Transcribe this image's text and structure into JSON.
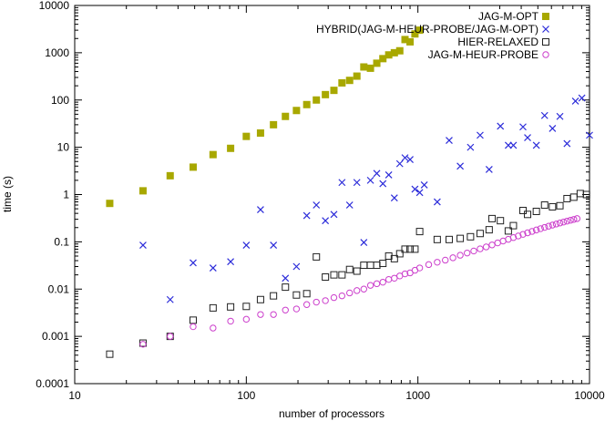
{
  "chart_data": {
    "type": "scatter",
    "xscale": "log",
    "yscale": "log",
    "xlabel": "number of processors",
    "ylabel": "time (s)",
    "xlim": [
      10,
      10000
    ],
    "ylim": [
      0.0001,
      10000
    ],
    "grid": false,
    "legend_position": "top-right",
    "x_tick_labels": [
      "10",
      "100",
      "1000",
      "10000"
    ],
    "y_tick_labels": [
      "0.0001",
      "0.001",
      "0.01",
      "0.1",
      "1",
      "10",
      "100",
      "1000",
      "10000"
    ],
    "series": [
      {
        "name": "JAG-M-OPT",
        "marker": "filled-square",
        "color": "#a8a800",
        "points": [
          [
            16,
            0.65
          ],
          [
            25,
            1.2
          ],
          [
            36,
            2.5
          ],
          [
            49,
            3.8
          ],
          [
            64,
            7
          ],
          [
            81,
            9.5
          ],
          [
            100,
            17
          ],
          [
            121,
            20
          ],
          [
            144,
            30
          ],
          [
            169,
            45
          ],
          [
            196,
            60
          ],
          [
            225,
            80
          ],
          [
            256,
            100
          ],
          [
            289,
            130
          ],
          [
            324,
            160
          ],
          [
            361,
            230
          ],
          [
            400,
            260
          ],
          [
            441,
            320
          ],
          [
            484,
            500
          ],
          [
            529,
            470
          ],
          [
            576,
            600
          ],
          [
            625,
            750
          ],
          [
            676,
            900
          ],
          [
            729,
            1000
          ],
          [
            784,
            1100
          ],
          [
            841,
            1900
          ],
          [
            900,
            1700
          ],
          [
            961,
            2500
          ],
          [
            1024,
            3000
          ]
        ]
      },
      {
        "name": "HYBRID(JAG-M-HEUR-PROBE/JAG-M-OPT)",
        "marker": "cross",
        "color": "#2b2bd9",
        "points": [
          [
            25,
            0.085
          ],
          [
            36,
            0.006
          ],
          [
            49,
            0.036
          ],
          [
            64,
            0.028
          ],
          [
            81,
            0.038
          ],
          [
            100,
            0.085
          ],
          [
            121,
            0.48
          ],
          [
            144,
            0.085
          ],
          [
            169,
            0.017
          ],
          [
            196,
            0.03
          ],
          [
            225,
            0.36
          ],
          [
            256,
            0.6
          ],
          [
            289,
            0.28
          ],
          [
            324,
            0.38
          ],
          [
            361,
            1.8
          ],
          [
            400,
            0.6
          ],
          [
            441,
            1.8
          ],
          [
            484,
            0.097
          ],
          [
            529,
            2
          ],
          [
            576,
            2.8
          ],
          [
            625,
            1.7
          ],
          [
            676,
            2.6
          ],
          [
            729,
            0.85
          ],
          [
            784,
            4.5
          ],
          [
            841,
            6
          ],
          [
            900,
            5.5
          ],
          [
            961,
            1.3
          ],
          [
            1024,
            1.1
          ],
          [
            1089,
            1.6
          ],
          [
            1296,
            0.7
          ],
          [
            1521,
            14
          ],
          [
            1764,
            4
          ],
          [
            2025,
            10
          ],
          [
            2304,
            18
          ],
          [
            2601,
            3.4
          ],
          [
            3025,
            28
          ],
          [
            3364,
            11
          ],
          [
            3600,
            11
          ],
          [
            4096,
            27
          ],
          [
            4356,
            16
          ],
          [
            4900,
            11
          ],
          [
            5476,
            47
          ],
          [
            6084,
            25
          ],
          [
            6724,
            45
          ],
          [
            7396,
            12
          ],
          [
            8281,
            95
          ],
          [
            9025,
            110
          ],
          [
            10000,
            18
          ]
        ]
      },
      {
        "name": "HIER-RELAXED",
        "marker": "open-square",
        "color": "#222222",
        "points": [
          [
            16,
            0.00042
          ],
          [
            25,
            0.00072
          ],
          [
            36,
            0.001
          ],
          [
            49,
            0.0022
          ],
          [
            64,
            0.004
          ],
          [
            81,
            0.0042
          ],
          [
            100,
            0.0043
          ],
          [
            121,
            0.006
          ],
          [
            144,
            0.0072
          ],
          [
            169,
            0.011
          ],
          [
            196,
            0.0075
          ],
          [
            225,
            0.008
          ],
          [
            256,
            0.048
          ],
          [
            289,
            0.018
          ],
          [
            324,
            0.02
          ],
          [
            361,
            0.02
          ],
          [
            400,
            0.026
          ],
          [
            441,
            0.024
          ],
          [
            484,
            0.032
          ],
          [
            529,
            0.032
          ],
          [
            576,
            0.032
          ],
          [
            625,
            0.035
          ],
          [
            676,
            0.05
          ],
          [
            729,
            0.044
          ],
          [
            784,
            0.056
          ],
          [
            841,
            0.07
          ],
          [
            900,
            0.07
          ],
          [
            961,
            0.07
          ],
          [
            1024,
            0.165
          ],
          [
            1296,
            0.112
          ],
          [
            1521,
            0.112
          ],
          [
            1764,
            0.118
          ],
          [
            2025,
            0.128
          ],
          [
            2304,
            0.15
          ],
          [
            2601,
            0.18
          ],
          [
            2704,
            0.31
          ],
          [
            3025,
            0.28
          ],
          [
            3364,
            0.17
          ],
          [
            3600,
            0.22
          ],
          [
            4096,
            0.46
          ],
          [
            4356,
            0.38
          ],
          [
            4900,
            0.44
          ],
          [
            5476,
            0.6
          ],
          [
            6084,
            0.55
          ],
          [
            6724,
            0.58
          ],
          [
            7396,
            0.82
          ],
          [
            8100,
            0.88
          ],
          [
            8836,
            1.05
          ],
          [
            9604,
            1.0
          ]
        ]
      },
      {
        "name": "JAG-M-HEUR-PROBE",
        "marker": "open-circle",
        "color": "#cc3fcc",
        "points": [
          [
            25,
            0.00068
          ],
          [
            36,
            0.001
          ],
          [
            49,
            0.0016
          ],
          [
            64,
            0.0015
          ],
          [
            81,
            0.0021
          ],
          [
            100,
            0.0023
          ],
          [
            121,
            0.0029
          ],
          [
            144,
            0.0029
          ],
          [
            169,
            0.0036
          ],
          [
            196,
            0.0038
          ],
          [
            225,
            0.0047
          ],
          [
            256,
            0.0053
          ],
          [
            289,
            0.0057
          ],
          [
            324,
            0.0066
          ],
          [
            361,
            0.0072
          ],
          [
            400,
            0.0083
          ],
          [
            441,
            0.0093
          ],
          [
            484,
            0.01
          ],
          [
            529,
            0.012
          ],
          [
            576,
            0.013
          ],
          [
            625,
            0.014
          ],
          [
            676,
            0.016
          ],
          [
            729,
            0.017
          ],
          [
            784,
            0.019
          ],
          [
            841,
            0.021
          ],
          [
            900,
            0.022
          ],
          [
            961,
            0.025
          ],
          [
            1024,
            0.028
          ],
          [
            1156,
            0.033
          ],
          [
            1296,
            0.037
          ],
          [
            1444,
            0.041
          ],
          [
            1600,
            0.046
          ],
          [
            1764,
            0.052
          ],
          [
            1936,
            0.058
          ],
          [
            2116,
            0.064
          ],
          [
            2304,
            0.071
          ],
          [
            2500,
            0.078
          ],
          [
            2704,
            0.086
          ],
          [
            2916,
            0.095
          ],
          [
            3136,
            0.104
          ],
          [
            3364,
            0.113
          ],
          [
            3600,
            0.123
          ],
          [
            3844,
            0.133
          ],
          [
            4096,
            0.144
          ],
          [
            4356,
            0.155
          ],
          [
            4624,
            0.166
          ],
          [
            4900,
            0.178
          ],
          [
            5184,
            0.19
          ],
          [
            5476,
            0.202
          ],
          [
            5776,
            0.214
          ],
          [
            6084,
            0.226
          ],
          [
            6400,
            0.238
          ],
          [
            6724,
            0.25
          ],
          [
            7056,
            0.262
          ],
          [
            7396,
            0.274
          ],
          [
            7744,
            0.286
          ],
          [
            8100,
            0.298
          ],
          [
            8464,
            0.31
          ]
        ]
      }
    ]
  }
}
